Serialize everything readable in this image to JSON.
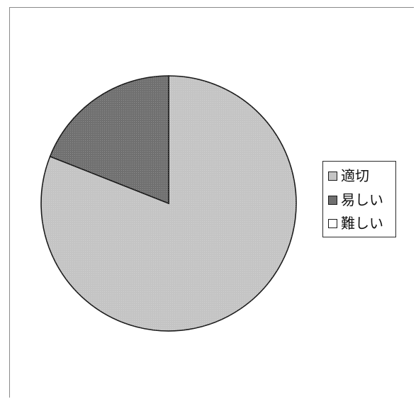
{
  "chart_data": {
    "type": "pie",
    "categories": [
      "適切",
      "易しい",
      "難しい"
    ],
    "values": [
      81,
      19,
      0
    ],
    "colors": [
      "#c4c4c4",
      "#707070",
      "#ffffff"
    ],
    "start_angle_deg": 0,
    "direction": "clockwise",
    "legend_placement": "right"
  },
  "legend": {
    "items": [
      {
        "label": "適切",
        "color": "#c4c4c4"
      },
      {
        "label": "易しい",
        "color": "#707070"
      },
      {
        "label": "難しい",
        "color": "#ffffff"
      }
    ]
  }
}
